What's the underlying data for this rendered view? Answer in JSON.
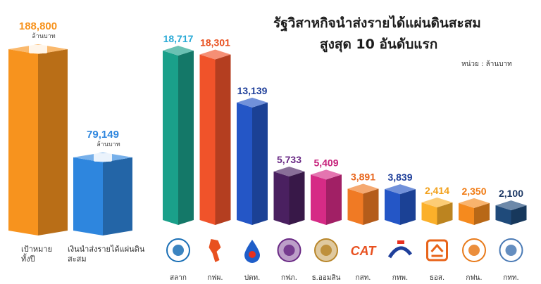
{
  "header": {
    "title_line1": "รัฐวิสาหกิจนำส่งรายได้แผ่นดินสะสม",
    "title_line2": "สูงสุด 10 อันดับแรก",
    "unit_label": "หน่วย : ล้านบาท"
  },
  "chart_data": [
    {
      "type": "bar",
      "categories": [
        "เป้าหมาย ทั้งปี",
        "เงินนำส่งรายได้แผ่นดิน สะสม"
      ],
      "values": [
        188800,
        79149
      ],
      "value_labels": [
        "188,800",
        "79,149"
      ],
      "value_unit": "ล้านบาท",
      "colors": [
        "#f7931e",
        "#2e86de"
      ],
      "ylim": [
        0,
        188800
      ]
    },
    {
      "type": "bar",
      "categories": [
        "สลาก",
        "กฟผ.",
        "ปตท.",
        "กฟภ.",
        "ธ.ออมสิน",
        "กสท.",
        "กทพ.",
        "ธอส.",
        "กฟน.",
        "กทท."
      ],
      "values": [
        18717,
        18301,
        13139,
        5733,
        5409,
        3891,
        3839,
        2414,
        2350,
        2100
      ],
      "value_labels": [
        "18,717",
        "18,301",
        "13,139",
        "5,733",
        "5,409",
        "3,891",
        "3,839",
        "2,414",
        "2,350",
        "2,100"
      ],
      "label_colors": [
        "#27a9d6",
        "#e8501f",
        "#1f3f9a",
        "#6a2a85",
        "#c6207a",
        "#e8641a",
        "#1f3f9a",
        "#f2a01a",
        "#f07a12",
        "#1f3a66"
      ],
      "colors": [
        "#1aa08a",
        "#f0532a",
        "#2456c6",
        "#4a2060",
        "#d62b86",
        "#f07a24",
        "#2456c6",
        "#fbb02a",
        "#f58a1e",
        "#1f4a7a"
      ],
      "ylim": [
        0,
        18717
      ]
    }
  ],
  "icons": [
    "lottery-logo-icon",
    "egat-map-icon",
    "ptt-drop-icon",
    "pea-logo-icon",
    "gsb-logo-icon",
    "cat-logo-icon",
    "exat-logo-icon",
    "ghb-logo-icon",
    "mea-logo-icon",
    "port-logo-icon"
  ],
  "cat_logo_text": "CAT"
}
